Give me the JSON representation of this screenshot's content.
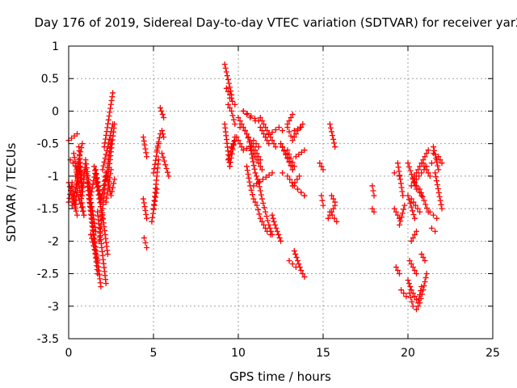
{
  "chart_data": {
    "type": "scatter",
    "title": "Day 176 of 2019, Sidereal Day-to-day VTEC variation (SDTVAR) for receiver yar2",
    "xlabel": "GPS time / hours",
    "ylabel": "SDTVAR / TECUs",
    "xlim": [
      0,
      25
    ],
    "ylim": [
      -3.5,
      1
    ],
    "x_ticks": [
      0,
      5,
      10,
      15,
      20,
      25
    ],
    "x_tick_labels": [
      "0",
      "5",
      "10",
      "15",
      "20",
      "25"
    ],
    "y_ticks": [
      1,
      0.5,
      0,
      -0.5,
      -1,
      -1.5,
      -2,
      -2.5,
      -3,
      -3.5
    ],
    "y_tick_labels": [
      "1",
      "0.5",
      "0",
      "-0.5",
      "-1",
      "-1.5",
      "-2",
      "-2.5",
      "-3",
      "-3.5"
    ],
    "grid": true,
    "marker": "plus",
    "marker_color": "#ff0000",
    "series": [
      {
        "name": "SDTVAR",
        "tracks": [
          {
            "x": [
              0.0,
              0.5
            ],
            "y": [
              -0.45,
              -0.35
            ]
          },
          {
            "x": [
              0.0,
              0.5
            ],
            "y": [
              -1.1,
              -1.6
            ]
          },
          {
            "x": [
              0.1,
              0.9
            ],
            "y": [
              -0.75,
              -1.0
            ]
          },
          {
            "x": [
              0.2,
              0.6
            ],
            "y": [
              -1.45,
              -0.95
            ]
          },
          {
            "x": [
              0.3,
              0.9
            ],
            "y": [
              -0.65,
              -1.6
            ]
          },
          {
            "x": [
              0.4,
              0.8
            ],
            "y": [
              -1.0,
              -0.5
            ]
          },
          {
            "x": [
              0.5,
              0.9
            ],
            "y": [
              -1.25,
              -1.6
            ]
          },
          {
            "x": [
              0.6,
              0.8
            ],
            "y": [
              -0.55,
              -1.15
            ]
          },
          {
            "x": [
              1.0,
              1.6
            ],
            "y": [
              -0.9,
              -1.85
            ]
          },
          {
            "x": [
              1.1,
              1.7
            ],
            "y": [
              -1.1,
              -2.5
            ]
          },
          {
            "x": [
              1.2,
              1.9
            ],
            "y": [
              -1.3,
              -2.7
            ]
          },
          {
            "x": [
              1.3,
              1.7
            ],
            "y": [
              -1.9,
              -2.3
            ]
          },
          {
            "x": [
              1.5,
              1.9
            ],
            "y": [
              -0.85,
              -1.35
            ]
          },
          {
            "x": [
              1.6,
              2.0
            ],
            "y": [
              -1.05,
              -1.65
            ]
          },
          {
            "x": [
              1.7,
              2.2
            ],
            "y": [
              -1.55,
              -2.65
            ]
          },
          {
            "x": [
              1.8,
              2.2
            ],
            "y": [
              -2.0,
              -1.0
            ]
          },
          {
            "x": [
              2.0,
              2.3
            ],
            "y": [
              -1.6,
              -2.2
            ]
          },
          {
            "x": [
              2.0,
              2.6
            ],
            "y": [
              -0.9,
              -0.2
            ]
          },
          {
            "x": [
              2.1,
              2.6
            ],
            "y": [
              -0.55,
              0.28
            ]
          },
          {
            "x": [
              2.2,
              2.5
            ],
            "y": [
              -1.05,
              -0.45
            ]
          },
          {
            "x": [
              2.2,
              2.5
            ],
            "y": [
              -1.4,
              -0.9
            ]
          },
          {
            "x": [
              2.3,
              2.7
            ],
            "y": [
              -1.05,
              -0.2
            ]
          },
          {
            "x": [
              4.4,
              4.6
            ],
            "y": [
              -0.4,
              -0.7
            ]
          },
          {
            "x": [
              4.4,
              4.6
            ],
            "y": [
              -1.35,
              -1.65
            ]
          },
          {
            "x": [
              4.45,
              4.6
            ],
            "y": [
              -1.95,
              -2.1
            ]
          },
          {
            "x": [
              4.9,
              5.2
            ],
            "y": [
              -1.7,
              -1.2
            ]
          },
          {
            "x": [
              5.0,
              5.3
            ],
            "y": [
              -0.95,
              -0.5
            ]
          },
          {
            "x": [
              5.0,
              5.3
            ],
            "y": [
              -1.5,
              -0.75
            ]
          },
          {
            "x": [
              5.2,
              5.4
            ],
            "y": [
              -0.6,
              -0.35
            ]
          },
          {
            "x": [
              5.4,
              5.6
            ],
            "y": [
              0.05,
              -0.1
            ]
          },
          {
            "x": [
              5.5,
              5.6
            ],
            "y": [
              -0.3,
              -0.4
            ]
          },
          {
            "x": [
              5.5,
              5.9
            ],
            "y": [
              -0.65,
              -1.0
            ]
          },
          {
            "x": [
              9.2,
              9.6
            ],
            "y": [
              0.72,
              0.25
            ]
          },
          {
            "x": [
              9.3,
              9.6
            ],
            "y": [
              0.35,
              0.2
            ]
          },
          {
            "x": [
              9.2,
              9.5
            ],
            "y": [
              -0.2,
              -0.85
            ]
          },
          {
            "x": [
              9.4,
              9.8
            ],
            "y": [
              -0.75,
              -0.45
            ]
          },
          {
            "x": [
              9.5,
              9.8
            ],
            "y": [
              -0.85,
              -0.4
            ]
          },
          {
            "x": [
              9.5,
              9.8
            ],
            "y": [
              0.2,
              0.1
            ]
          },
          {
            "x": [
              10.3,
              11.2
            ],
            "y": [
              0.0,
              -0.15
            ]
          },
          {
            "x": [
              10.9,
              11.2
            ],
            "y": [
              -0.45,
              -0.55
            ]
          },
          {
            "x": [
              10.9,
              12.0
            ],
            "y": [
              -1.15,
              -0.95
            ]
          },
          {
            "x": [
              11.3,
              11.8
            ],
            "y": [
              -0.25,
              -0.5
            ]
          },
          {
            "x": [
              11.6,
              12.4
            ],
            "y": [
              -0.4,
              -0.25
            ]
          },
          {
            "x": [
              12.5,
              13.2
            ],
            "y": [
              -0.5,
              -0.9
            ]
          },
          {
            "x": [
              12.9,
              13.3
            ],
            "y": [
              -0.6,
              -0.85
            ]
          },
          {
            "x": [
              13.3,
              13.7
            ],
            "y": [
              -0.3,
              -0.25
            ]
          },
          {
            "x": [
              13.4,
              13.9
            ],
            "y": [
              -0.7,
              -0.6
            ]
          },
          {
            "x": [
              12.9,
              13.2
            ],
            "y": [
              -0.2,
              -0.05
            ]
          },
          {
            "x": [
              13.5,
              13.9
            ],
            "y": [
              -1.2,
              -1.3
            ]
          },
          {
            "x": [
              13.2,
              13.6
            ],
            "y": [
              -1.15,
              -1.0
            ]
          },
          {
            "x": [
              14.8,
              15.0
            ],
            "y": [
              -0.8,
              -0.9
            ]
          },
          {
            "x": [
              14.9,
              15.0
            ],
            "y": [
              -1.3,
              -1.45
            ]
          },
          {
            "x": [
              15.3,
              15.7
            ],
            "y": [
              -1.65,
              -1.45
            ]
          },
          {
            "x": [
              15.5,
              15.7
            ],
            "y": [
              -1.3,
              -1.4
            ]
          },
          {
            "x": [
              15.4,
              15.7
            ],
            "y": [
              -0.2,
              -0.55
            ]
          },
          {
            "x": [
              15.4,
              15.8
            ],
            "y": [
              -1.55,
              -1.7
            ]
          },
          {
            "x": [
              17.9,
              18.0
            ],
            "y": [
              -1.15,
              -1.3
            ]
          },
          {
            "x": [
              17.9,
              18.0
            ],
            "y": [
              -1.5,
              -1.55
            ]
          },
          {
            "x": [
              19.2,
              19.5
            ],
            "y": [
              -0.95,
              -1.0
            ]
          },
          {
            "x": [
              19.2,
              19.5
            ],
            "y": [
              -1.5,
              -1.65
            ]
          },
          {
            "x": [
              19.3,
              19.5
            ],
            "y": [
              -2.4,
              -2.5
            ]
          },
          {
            "x": [
              19.4,
              19.7
            ],
            "y": [
              -0.8,
              -1.3
            ]
          },
          {
            "x": [
              19.5,
              19.8
            ],
            "y": [
              -1.75,
              -1.45
            ]
          },
          {
            "x": [
              19.6,
              19.9
            ],
            "y": [
              -2.75,
              -2.85
            ]
          },
          {
            "x": [
              20.0,
              20.5
            ],
            "y": [
              -0.8,
              -1.2
            ]
          },
          {
            "x": [
              20.0,
              20.4
            ],
            "y": [
              -1.3,
              -1.65
            ]
          },
          {
            "x": [
              20.2,
              20.5
            ],
            "y": [
              -2.0,
              -1.85
            ]
          },
          {
            "x": [
              20.1,
              20.5
            ],
            "y": [
              -2.3,
              -2.5
            ]
          },
          {
            "x": [
              20.2,
              20.7
            ],
            "y": [
              -1.35,
              -1.55
            ]
          },
          {
            "x": [
              20.4,
              20.8
            ],
            "y": [
              -1.1,
              -1.3
            ]
          },
          {
            "x": [
              20.7,
              21.2
            ],
            "y": [
              -1.2,
              -1.55
            ]
          },
          {
            "x": [
              20.9,
              21.3
            ],
            "y": [
              -0.8,
              -1.0
            ]
          },
          {
            "x": [
              21.5,
              21.8
            ],
            "y": [
              -0.55,
              -0.9
            ]
          },
          {
            "x": [
              21.6,
              22.0
            ],
            "y": [
              -0.95,
              -1.5
            ]
          },
          {
            "x": [
              21.3,
              21.7
            ],
            "y": [
              -1.55,
              -1.65
            ]
          },
          {
            "x": [
              21.4,
              21.6
            ],
            "y": [
              -1.8,
              -1.85
            ]
          },
          {
            "x": [
              20.8,
              21.0
            ],
            "y": [
              -2.2,
              -2.3
            ]
          }
        ],
        "curves": [
          {
            "x": [
              0.0,
              0.2,
              0.4,
              0.6,
              0.8,
              1.0,
              1.3,
              1.6,
              1.9,
              2.2,
              2.5,
              2.7
            ],
            "y": [
              -1.4,
              -1.1,
              -1.5,
              -0.8,
              -1.3,
              -0.75,
              -1.3,
              -0.9,
              -1.4,
              -0.95,
              -1.3,
              -1.05
            ]
          },
          {
            "x": [
              9.6,
              9.9,
              10.3,
              10.7,
              11.0,
              11.2,
              11.4,
              11.6,
              11.8,
              12.0
            ],
            "y": [
              -0.55,
              -0.4,
              -0.6,
              -0.55,
              -0.95,
              -1.1,
              -1.35,
              -1.55,
              -1.75,
              -1.9
            ]
          },
          {
            "x": [
              10.3,
              10.5,
              10.7,
              11.0,
              11.3,
              11.6,
              11.9,
              12.2,
              12.5,
              12.8,
              13.2
            ],
            "y": [
              0.0,
              -0.05,
              -0.1,
              -0.15,
              -0.1,
              -0.25,
              -0.4,
              -0.55,
              -0.5,
              -0.65,
              -0.9
            ]
          },
          {
            "x": [
              10.5,
              10.7,
              10.9,
              11.1,
              11.3,
              11.5,
              11.7,
              11.9
            ],
            "y": [
              -0.85,
              -1.15,
              -1.35,
              -1.45,
              -1.65,
              -1.75,
              -1.85,
              -1.9
            ]
          },
          {
            "x": [
              9.4,
              9.6,
              9.8,
              10.1,
              10.4,
              10.7,
              11.0,
              11.3
            ],
            "y": [
              0.1,
              0.0,
              -0.2,
              -0.25,
              -0.3,
              -0.45,
              -0.6,
              -0.75
            ]
          },
          {
            "x": [
              10.0,
              10.2,
              10.5,
              10.8,
              11.1,
              11.4
            ],
            "y": [
              -0.1,
              -0.2,
              -0.35,
              -0.6,
              -0.75,
              -0.9
            ]
          },
          {
            "x": [
              12.0,
              12.1,
              12.3,
              12.5
            ],
            "y": [
              -1.6,
              -1.7,
              -1.85,
              -2.0
            ]
          },
          {
            "x": [
              12.6,
              12.9,
              13.3,
              13.7,
              13.9
            ],
            "y": [
              -0.95,
              -1.0,
              -1.15,
              -1.25,
              -1.3
            ]
          },
          {
            "x": [
              12.6,
              12.9,
              13.2,
              13.5,
              13.8
            ],
            "y": [
              -0.3,
              -0.25,
              -0.45,
              -0.3,
              -0.2
            ]
          },
          {
            "x": [
              13.3,
              13.5,
              13.7,
              13.9
            ],
            "y": [
              -2.15,
              -2.3,
              -2.45,
              -2.55
            ]
          },
          {
            "x": [
              13.0,
              13.2,
              13.4
            ],
            "y": [
              -2.3,
              -2.35,
              -2.4
            ]
          },
          {
            "x": [
              20.1,
              20.3,
              20.5,
              20.7,
              20.9,
              21.1
            ],
            "y": [
              -2.8,
              -3.0,
              -3.05,
              -2.95,
              -2.75,
              -2.5
            ]
          },
          {
            "x": [
              20.0,
              20.2,
              20.4,
              20.6,
              20.8
            ],
            "y": [
              -2.6,
              -2.75,
              -2.85,
              -2.95,
              -2.7
            ]
          },
          {
            "x": [
              20.3,
              20.6,
              20.9,
              21.2,
              21.5,
              21.8,
              22.0
            ],
            "y": [
              -1.05,
              -0.9,
              -0.75,
              -0.6,
              -0.65,
              -0.7,
              -0.8
            ]
          },
          {
            "x": [
              20.2,
              20.5,
              20.8,
              21.1,
              21.4,
              21.7
            ],
            "y": [
              -1.15,
              -1.05,
              -0.95,
              -0.85,
              -0.8,
              -0.75
            ]
          }
        ]
      }
    ]
  }
}
